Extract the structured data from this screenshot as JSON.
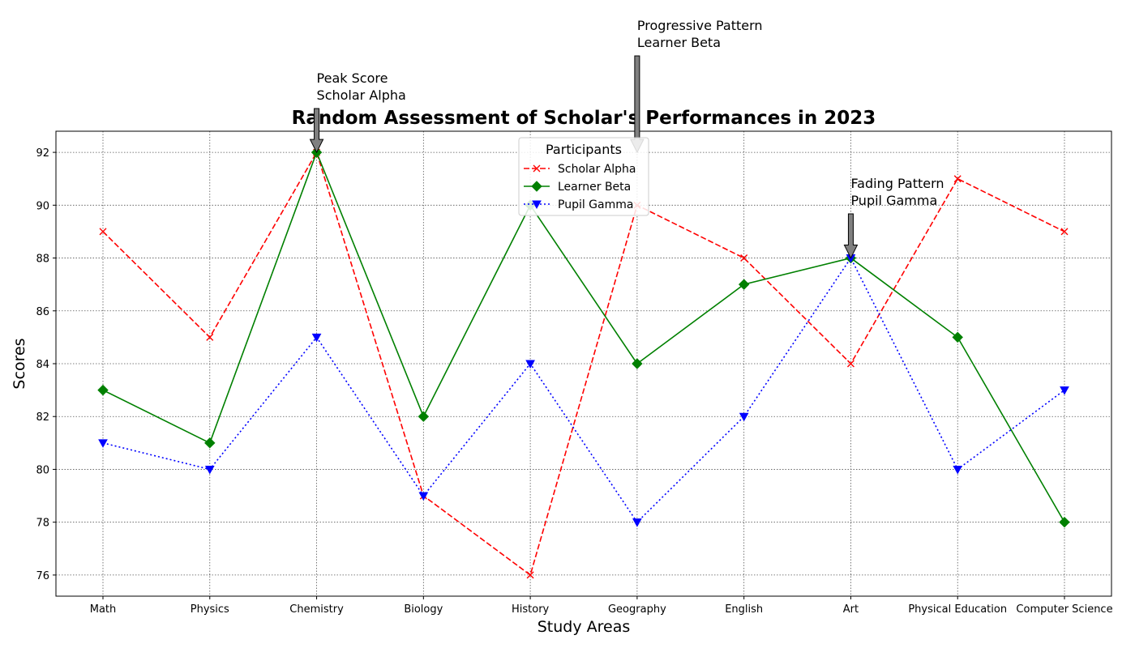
{
  "chart_data": {
    "type": "line",
    "title": "Random Assessment of Scholar's Performances in 2023",
    "xlabel": "Study Areas",
    "ylabel": "Scores",
    "categories": [
      "Math",
      "Physics",
      "Chemistry",
      "Biology",
      "History",
      "Geography",
      "English",
      "Art",
      "Physical Education",
      "Computer Science"
    ],
    "ylim": [
      75.2,
      92.8
    ],
    "yticks": [
      76,
      78,
      80,
      82,
      84,
      86,
      88,
      90,
      92
    ],
    "grid": true,
    "legend": {
      "title": "Participants",
      "placement": "upper center"
    },
    "series": [
      {
        "name": "Scholar Alpha",
        "values": [
          89,
          85,
          92,
          79,
          76,
          90,
          88,
          84,
          91,
          89
        ],
        "color": "#ff0000",
        "marker": "x",
        "linestyle": "dashed"
      },
      {
        "name": "Learner Beta",
        "values": [
          83,
          81,
          92,
          82,
          90,
          84,
          87,
          88,
          85,
          78
        ],
        "color": "#008000",
        "marker": "diamond",
        "linestyle": "solid"
      },
      {
        "name": "Pupil Gamma",
        "values": [
          81,
          80,
          85,
          79,
          84,
          78,
          82,
          88,
          80,
          83
        ],
        "color": "#0000ff",
        "marker": "triangle-down",
        "linestyle": "dotted"
      }
    ],
    "annotations": [
      {
        "lines": [
          "Peak Score",
          "Scholar Alpha"
        ],
        "x": "Chemistry",
        "y": 92
      },
      {
        "lines": [
          "Progressive Pattern",
          "Learner Beta"
        ],
        "x": "Geography",
        "y": 92
      },
      {
        "lines": [
          "Fading Pattern",
          "Pupil Gamma"
        ],
        "x": "Art",
        "y": 88
      }
    ]
  }
}
